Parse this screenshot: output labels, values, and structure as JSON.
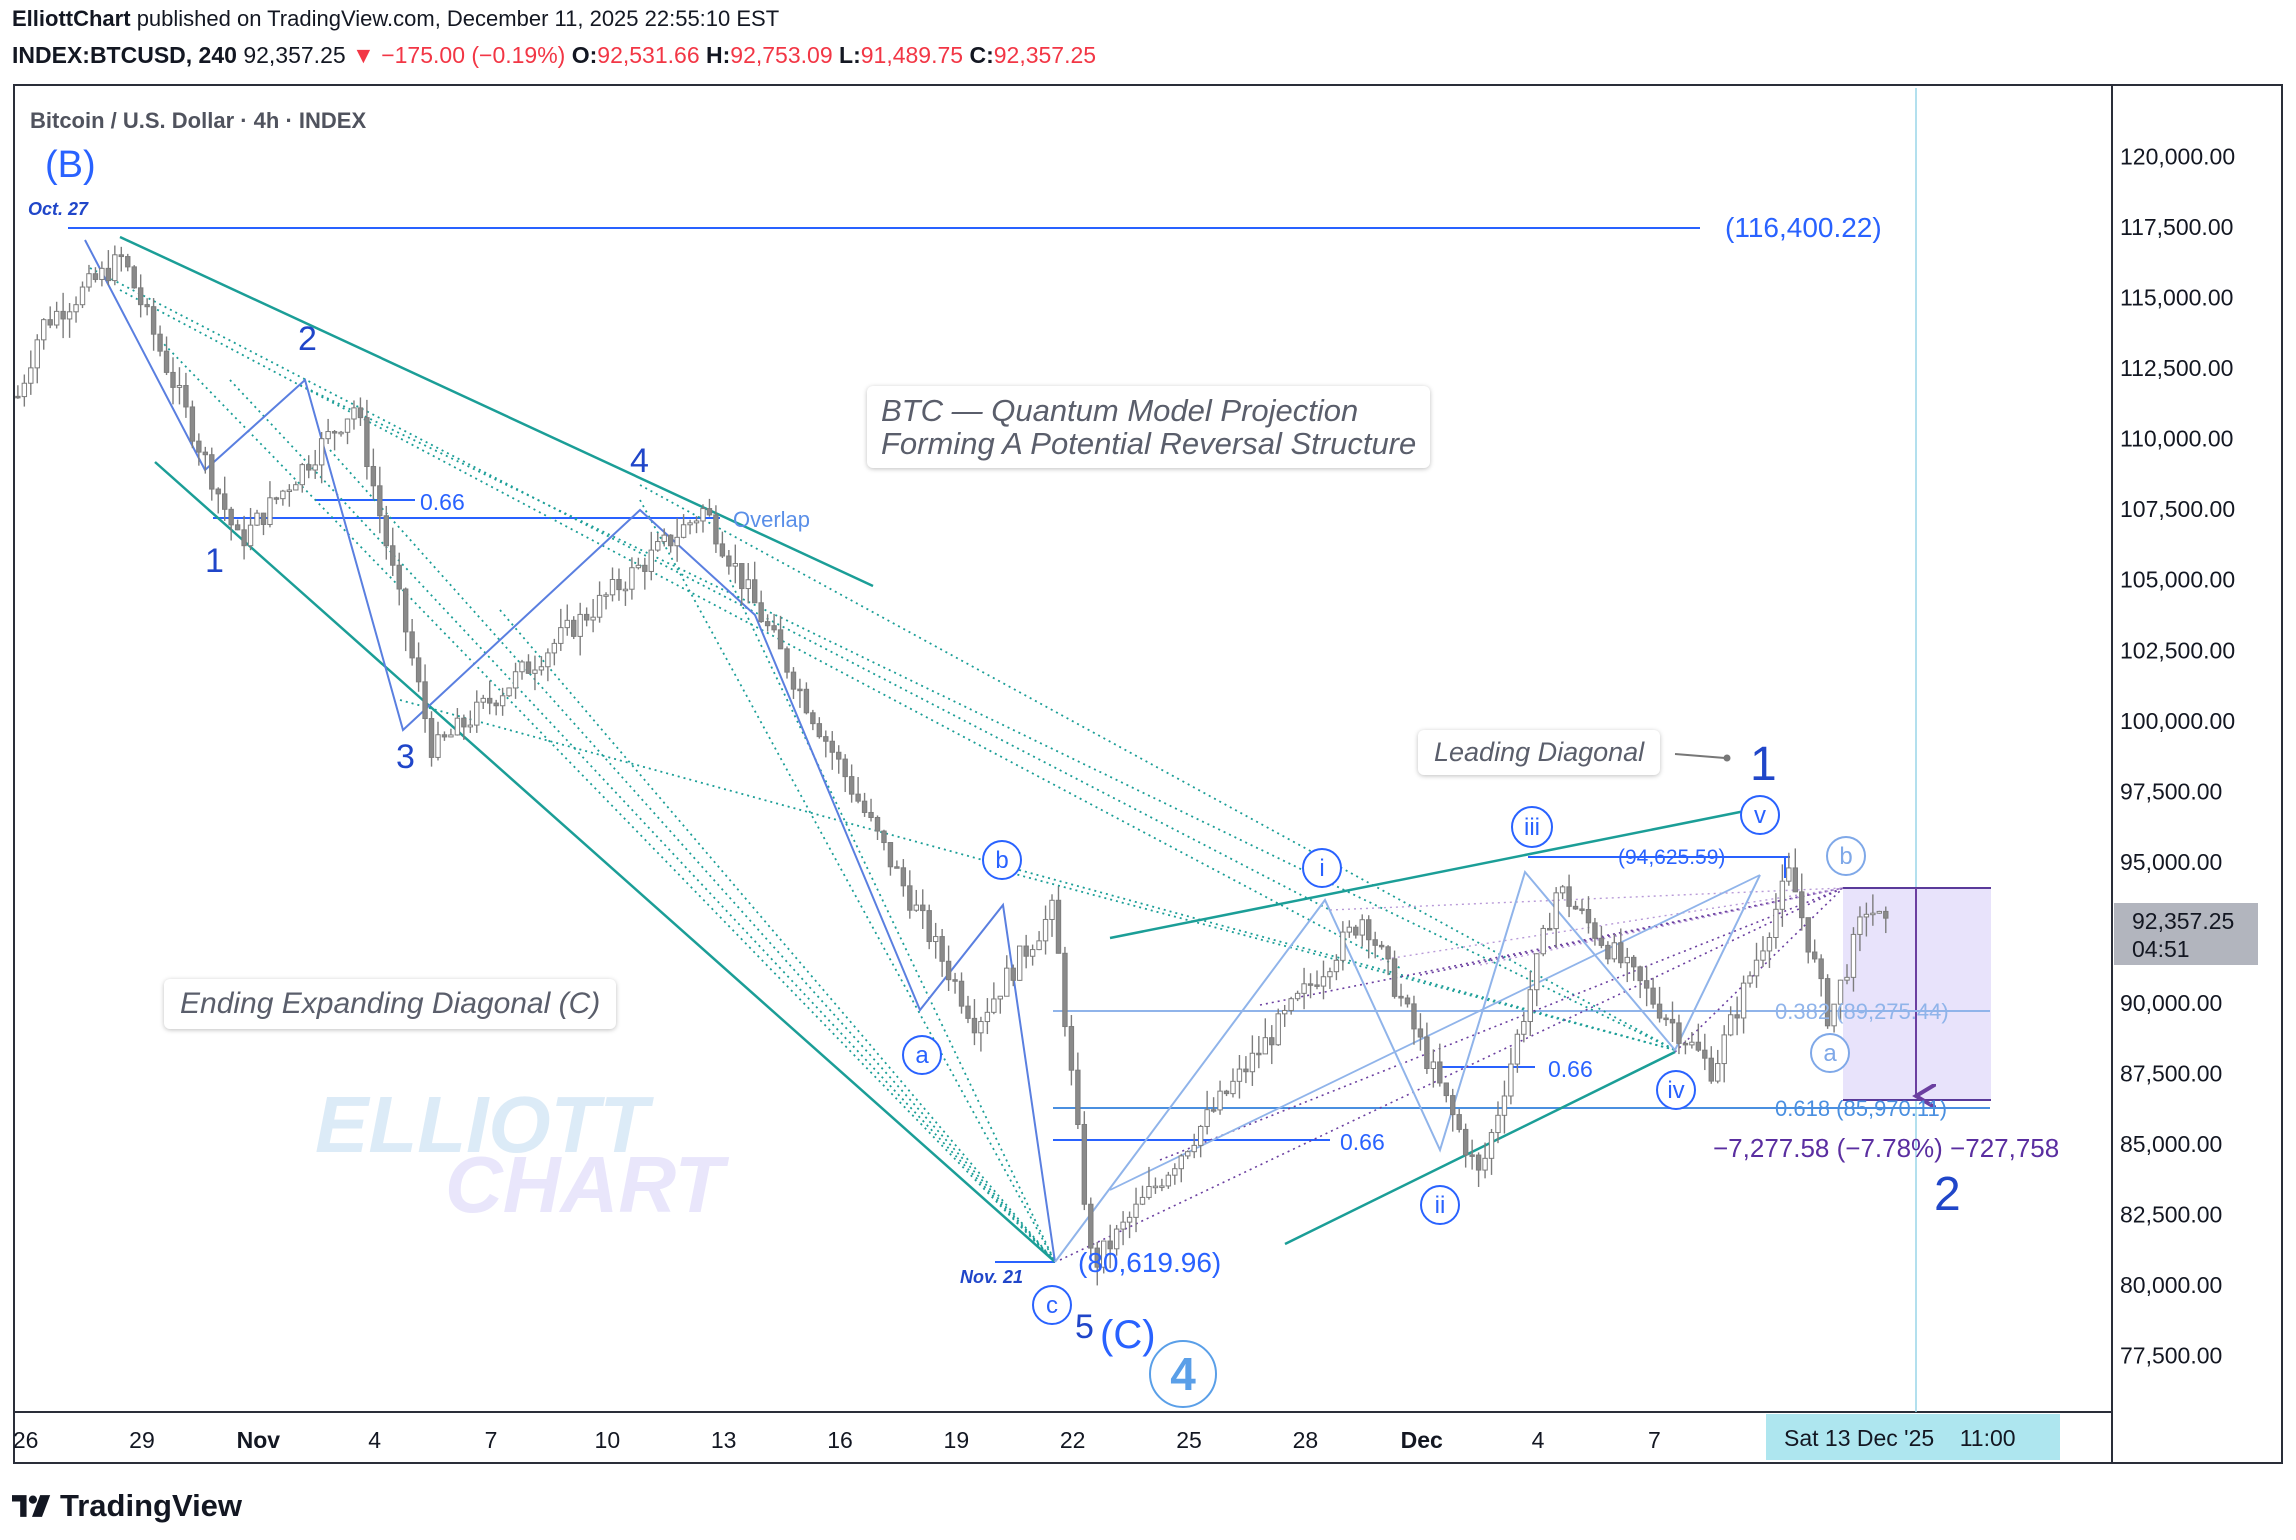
{
  "header": {
    "author": "ElliottChart",
    "published_text": "published on TradingView.com, December 11, 2025 22:55:10 EST",
    "symbol": "INDEX:BTCUSD, 240",
    "price": "92,357.25",
    "arrow": "▼",
    "change": "−175.00 (−0.19%)",
    "o_label": "O:",
    "o_value": "92,531.66",
    "h_label": "H:",
    "h_value": "92,753.09",
    "l_label": "L:",
    "l_value": "91,489.75",
    "c_label": "C:",
    "c_value": "92,357.25"
  },
  "legend_title": "Bitcoin / U.S. Dollar · 4h · INDEX",
  "current_price_tag": {
    "price": "92,357.25",
    "countdown": "04:51"
  },
  "crosshair_time_label": "Sat 13 Dec '25    11:00",
  "footer": {
    "brand": "TradingView"
  },
  "watermark": {
    "line1": "ELLIOTT",
    "line2": "CHART"
  },
  "colors": {
    "teal": "#1b9e97",
    "blue": "#2962ff",
    "wave_blue": "#2046c9",
    "light_blue": "#90b4ea",
    "purple": "#6b3fa0",
    "box_fill": "#e8e3fb",
    "candle": "#8a8a8a"
  },
  "text_boxes": {
    "title_line1": "BTC — Quantum Model Projection",
    "title_line2": "Forming A Potential Reversal Structure",
    "ending_diagonal": "Ending Expanding Diagonal (C)",
    "leading_diagonal": "Leading Diagonal"
  },
  "annotations": {
    "wave_B": "(B)",
    "oct27": "Oct. 27",
    "nov21": "Nov. 21",
    "level_116400": "(116,400.22)",
    "level_80619": "(80,619.96)",
    "level_94625": "(94,625.59)",
    "overlap": "Overlap",
    "fib_066_top": "0.66",
    "fib_066_mid": "0.66",
    "fib_066_low": "0.66",
    "fib_0382": "0.382 (89,275.44)",
    "fib_0618": "0.618 (85,970.11)",
    "measure": "−7,277.58 (−7.78%) −727,758",
    "w1": "1",
    "w2": "2",
    "w3": "3",
    "w4": "4",
    "w5": "5",
    "wC": "(C)",
    "w4_circle": "4",
    "wave1_new": "1",
    "wave2_new": "2",
    "sub_i": "i",
    "sub_ii": "ii",
    "sub_iii": "iii",
    "sub_iv": "iv",
    "sub_v": "v",
    "sub_a1": "a",
    "sub_b1": "b",
    "sub_c1": "c",
    "sub_a2": "a",
    "sub_b2": "b"
  },
  "chart_data": {
    "type": "candlestick",
    "title": "Bitcoin / U.S. Dollar · 4h · INDEX",
    "y_axis": {
      "ticks": [
        "120,000.00",
        "117,500.00",
        "115,000.00",
        "112,500.00",
        "110,000.00",
        "107,500.00",
        "105,000.00",
        "102,500.00",
        "100,000.00",
        "97,500.00",
        "95,000.00",
        "92,500.00",
        "90,000.00",
        "87,500.00",
        "85,000.00",
        "82,500.00",
        "80,000.00",
        "77,500.00"
      ],
      "tick_values": [
        120000,
        117500,
        115000,
        112500,
        110000,
        107500,
        105000,
        102500,
        100000,
        97500,
        95000,
        92500,
        90000,
        87500,
        85000,
        82500,
        80000,
        77500
      ],
      "ylim": [
        75500,
        122500
      ]
    },
    "x_axis": {
      "ticks": [
        "26",
        "29",
        "Nov",
        "4",
        "7",
        "10",
        "13",
        "16",
        "19",
        "22",
        "25",
        "28",
        "Dec",
        "4",
        "7"
      ],
      "tick_days": [
        -5,
        -2,
        1,
        4,
        7,
        10,
        13,
        16,
        19,
        22,
        25,
        28,
        31,
        34,
        37
      ],
      "xlim_days": [
        -5.3,
        48.8
      ]
    },
    "key_points": [
      {
        "label": "(B) Oct. 27 high",
        "date": "2025-10-27",
        "value": 116400.22
      },
      {
        "label": "1",
        "date": "2025-10-30",
        "value": 106300
      },
      {
        "label": "2",
        "date": "2025-11-02",
        "value": 111200
      },
      {
        "label": "3",
        "date": "2025-11-04",
        "value": 98900
      },
      {
        "label": "4",
        "date": "2025-11-11",
        "value": 107500
      },
      {
        "label": "a",
        "date": "2025-11-18",
        "value": 89300
      },
      {
        "label": "b",
        "date": "2025-11-20",
        "value": 93300
      },
      {
        "label": "c / 5 / (C) Nov. 21 low",
        "date": "2025-11-21",
        "value": 80619.96
      },
      {
        "label": "i",
        "date": "2025-11-28",
        "value": 93100
      },
      {
        "label": "ii",
        "date": "2025-12-01",
        "value": 83800
      },
      {
        "label": "iii",
        "date": "2025-12-03",
        "value": 94100
      },
      {
        "label": "iv",
        "date": "2025-12-07",
        "value": 87600
      },
      {
        "label": "v",
        "date": "2025-12-09",
        "value": 94625.59
      },
      {
        "label": "a",
        "date": "2025-12-10",
        "value": 89400
      },
      {
        "label": "b",
        "date": "2025-12-11",
        "value": 93500
      }
    ],
    "levels": [
      {
        "label": "(116,400.22)",
        "value": 116400.22
      },
      {
        "label": "0.382 (89,275.44)",
        "value": 89275.44
      },
      {
        "label": "0.618 (85,970.11)",
        "value": 85970.11
      },
      {
        "label": "(94,625.59)",
        "value": 94625.59
      }
    ],
    "last_price": 92357.25
  }
}
